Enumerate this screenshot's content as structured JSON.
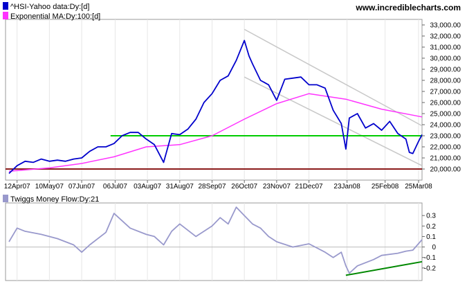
{
  "watermark": "www.incrediblecharts.com",
  "colors": {
    "price": "#0000cc",
    "ma": "#ff33ff",
    "green_line": "#00cc00",
    "brown_line": "#8b1a1a",
    "channel": "#c8c8c8",
    "twiggs": "#9999cc",
    "zero_line": "#bbbbbb",
    "twiggs_trend": "#008800",
    "grid": "#e6e6e6"
  },
  "chart_data": [
    {
      "type": "line",
      "ylim": [
        19000,
        33500
      ],
      "x_ticks": [
        "12Apr07",
        "10May07",
        "07Jun07",
        "06Jul07",
        "03Aug07",
        "31Aug07",
        "28Sep07",
        "26Oct07",
        "23Nov07",
        "21Dec07",
        "23Jan08",
        "25Feb08",
        "25Mar08"
      ],
      "y_ticks": [
        "20,000.00",
        "21,000.00",
        "22,000.00",
        "23,000.00",
        "24,000.00",
        "25,000.00",
        "26,000.00",
        "27,000.00",
        "28,000.00",
        "29,000.00",
        "30,000.00",
        "31,000.00",
        "32,000.00",
        "33,000.00"
      ],
      "y_tick_values": [
        20000,
        21000,
        22000,
        23000,
        24000,
        25000,
        26000,
        27000,
        28000,
        29000,
        30000,
        31000,
        32000,
        33000
      ],
      "series": [
        {
          "name": "^HSI-Yahoo data:Dy:[d]",
          "x": [
            "2007-04-05",
            "2007-04-12",
            "2007-04-19",
            "2007-04-26",
            "2007-05-03",
            "2007-05-10",
            "2007-05-17",
            "2007-05-24",
            "2007-05-31",
            "2007-06-07",
            "2007-06-14",
            "2007-06-21",
            "2007-06-28",
            "2007-07-05",
            "2007-07-12",
            "2007-07-19",
            "2007-07-26",
            "2007-08-02",
            "2007-08-09",
            "2007-08-17",
            "2007-08-24",
            "2007-08-31",
            "2007-09-07",
            "2007-09-14",
            "2007-09-21",
            "2007-09-28",
            "2007-10-05",
            "2007-10-12",
            "2007-10-19",
            "2007-10-26",
            "2007-10-30",
            "2007-11-02",
            "2007-11-09",
            "2007-11-16",
            "2007-11-23",
            "2007-11-30",
            "2007-12-07",
            "2007-12-14",
            "2007-12-21",
            "2007-12-28",
            "2008-01-04",
            "2008-01-11",
            "2008-01-18",
            "2008-01-22",
            "2008-01-25",
            "2008-02-01",
            "2008-02-08",
            "2008-02-15",
            "2008-02-22",
            "2008-02-29",
            "2008-03-07",
            "2008-03-14",
            "2008-03-17",
            "2008-03-20",
            "2008-03-25",
            "2008-03-28"
          ],
          "values": [
            19600,
            20300,
            20700,
            20600,
            20900,
            20700,
            20800,
            20700,
            20900,
            21000,
            21600,
            22000,
            22000,
            22300,
            23000,
            23300,
            23300,
            22700,
            22200,
            20600,
            23200,
            23100,
            23600,
            24500,
            26000,
            26800,
            28000,
            28400,
            29800,
            31600,
            30200,
            29500,
            28000,
            27600,
            26200,
            28100,
            28200,
            28300,
            27600,
            27600,
            27300,
            25300,
            24100,
            21800,
            24600,
            25000,
            23700,
            24100,
            23500,
            24300,
            23200,
            22700,
            21500,
            21400,
            22500,
            23100
          ]
        },
        {
          "name": "Exponential MA:Dy:100:[d]",
          "x": [
            "2007-04-05",
            "2007-05-10",
            "2007-06-07",
            "2007-07-05",
            "2007-08-02",
            "2007-08-31",
            "2007-09-28",
            "2007-10-26",
            "2007-11-23",
            "2007-12-21",
            "2008-01-22",
            "2008-02-22",
            "2008-03-28"
          ],
          "values": [
            19800,
            20100,
            20500,
            21100,
            22000,
            22200,
            23000,
            24500,
            25900,
            26800,
            26300,
            25400,
            24700
          ]
        },
        {
          "name": "level-23000",
          "x": [
            "2007-07-02",
            "2008-03-28"
          ],
          "values": [
            23000,
            23000
          ]
        },
        {
          "name": "level-20000",
          "x": [
            "2007-04-02",
            "2008-03-28"
          ],
          "values": [
            20000,
            20000
          ]
        },
        {
          "name": "channel-upper",
          "x": [
            "2007-10-26",
            "2008-03-28"
          ],
          "values": [
            32600,
            23900
          ]
        },
        {
          "name": "channel-lower",
          "x": [
            "2007-10-26",
            "2008-03-28"
          ],
          "values": [
            28300,
            20300
          ]
        }
      ]
    },
    {
      "type": "line",
      "ylim": [
        -0.32,
        0.42
      ],
      "y_ticks": [
        "0.3",
        "0.2",
        "0.1",
        "0",
        "-0.1",
        "-0.2"
      ],
      "y_tick_values": [
        0.3,
        0.2,
        0.1,
        0,
        -0.1,
        -0.2
      ],
      "series": [
        {
          "name": "Twiggs Money Flow:Dy:21",
          "x": [
            "2007-04-05",
            "2007-04-12",
            "2007-04-19",
            "2007-05-03",
            "2007-05-17",
            "2007-05-31",
            "2007-06-07",
            "2007-06-14",
            "2007-06-28",
            "2007-07-05",
            "2007-07-19",
            "2007-08-02",
            "2007-08-09",
            "2007-08-17",
            "2007-08-24",
            "2007-08-31",
            "2007-09-14",
            "2007-09-21",
            "2007-09-28",
            "2007-10-05",
            "2007-10-12",
            "2007-10-19",
            "2007-10-26",
            "2007-11-02",
            "2007-11-09",
            "2007-11-16",
            "2007-11-23",
            "2007-12-07",
            "2007-12-21",
            "2008-01-04",
            "2008-01-11",
            "2008-01-18",
            "2008-01-22",
            "2008-01-25",
            "2008-02-01",
            "2008-02-15",
            "2008-02-22",
            "2008-03-07",
            "2008-03-14",
            "2008-03-20",
            "2008-03-28"
          ],
          "values": [
            0.05,
            0.18,
            0.15,
            0.12,
            0.08,
            0.02,
            -0.05,
            0.02,
            0.14,
            0.32,
            0.18,
            0.12,
            0.1,
            0.02,
            0.15,
            0.22,
            0.1,
            0.15,
            0.2,
            0.28,
            0.22,
            0.38,
            0.3,
            0.22,
            0.18,
            0.1,
            0.05,
            0.0,
            0.03,
            -0.05,
            -0.1,
            -0.05,
            -0.18,
            -0.25,
            -0.18,
            -0.12,
            -0.08,
            -0.06,
            -0.04,
            -0.03,
            0.07
          ]
        },
        {
          "name": "twiggs-trend",
          "x": [
            "2008-01-22",
            "2008-03-28"
          ],
          "values": [
            -0.27,
            -0.14
          ]
        }
      ]
    }
  ],
  "price_legend": [
    {
      "label": "^HSI-Yahoo data:Dy:[d]",
      "color": "#0000cc"
    },
    {
      "label": "Exponential MA:Dy:100:[d]",
      "color": "#ff33ff"
    }
  ],
  "twiggs_legend": {
    "label": "Twiggs Money Flow:Dy:21",
    "color": "#9999cc"
  }
}
